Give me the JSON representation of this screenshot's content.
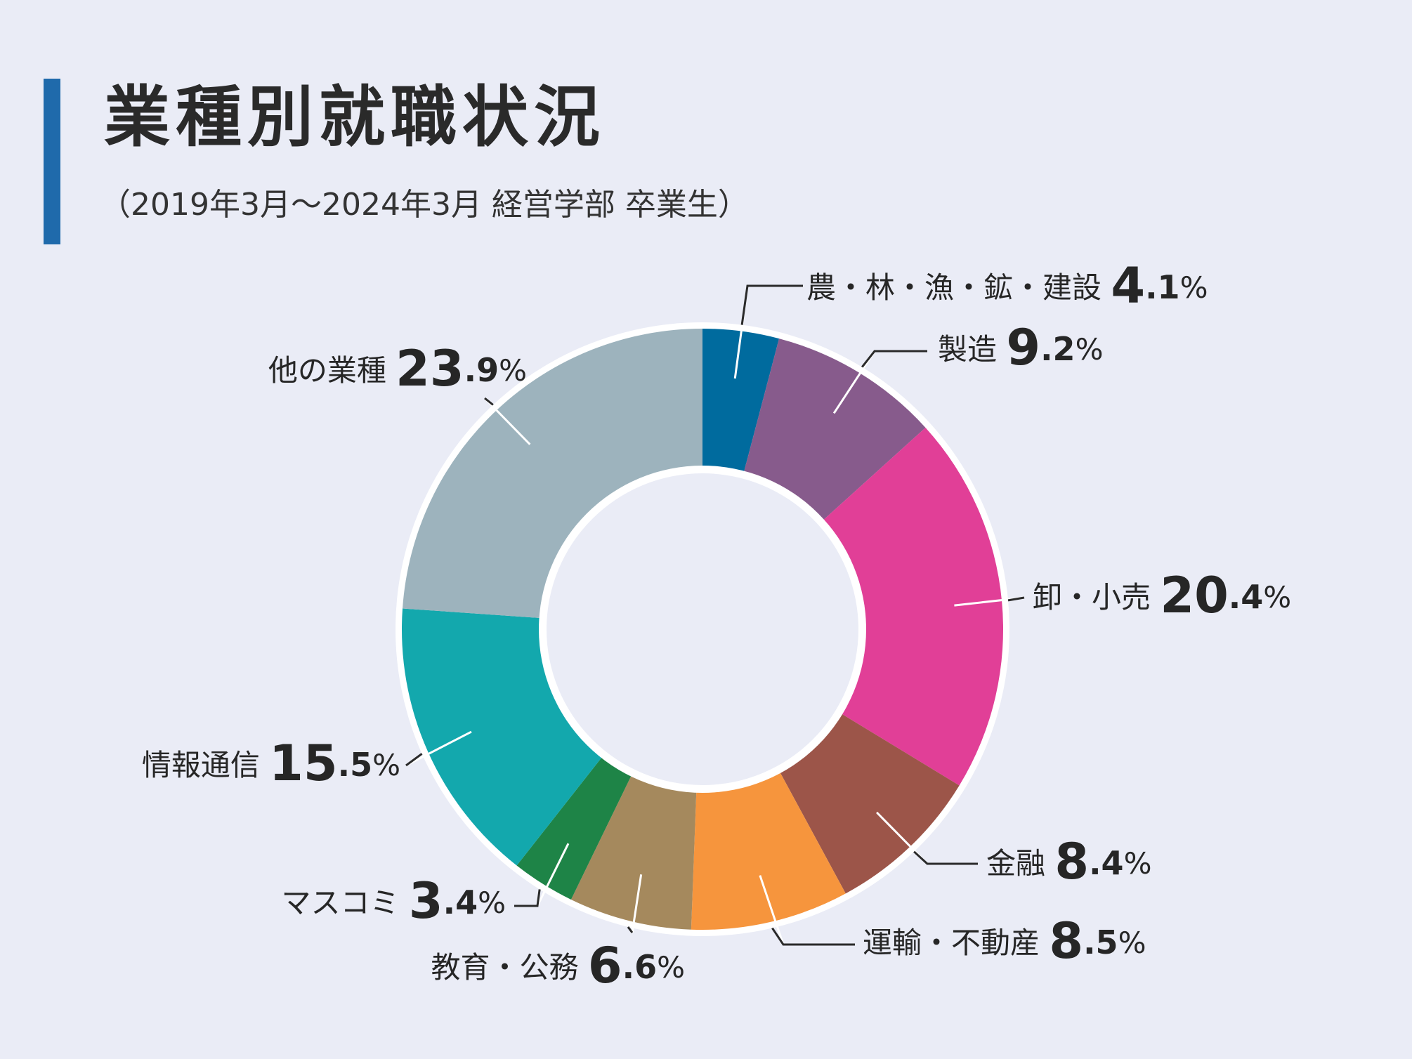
{
  "header": {
    "title": "業種別就職状況",
    "subtitle": "（2019年3月〜2024年3月 経営学部 卒業生）"
  },
  "chart_data": {
    "type": "pie",
    "style": "donut",
    "unit": "%",
    "categories": [
      "農・林・漁・鉱・建設",
      "製造",
      "卸・小売",
      "金融",
      "運輸・不動産",
      "教育・公務",
      "マスコミ",
      "情報通信",
      "他の業種"
    ],
    "values": [
      4.1,
      9.2,
      20.4,
      8.4,
      8.5,
      6.6,
      3.4,
      15.5,
      23.9
    ],
    "colors": [
      "#006b9e",
      "#875b8c",
      "#e13f97",
      "#9c5549",
      "#f6953d",
      "#a5895d",
      "#1e8447",
      "#13a8ad",
      "#9db3bd"
    ],
    "labels": [
      {
        "name": "農・林・漁・鉱・建設",
        "int": "4",
        "dec": ".1",
        "pct": "%"
      },
      {
        "name": "製造",
        "int": "9",
        "dec": ".2",
        "pct": "%"
      },
      {
        "name": "卸・小売",
        "int": "20",
        "dec": ".4",
        "pct": "%"
      },
      {
        "name": "金融",
        "int": "8",
        "dec": ".4",
        "pct": "%"
      },
      {
        "name": "運輸・不動産",
        "int": "8",
        "dec": ".5",
        "pct": "%"
      },
      {
        "name": "教育・公務",
        "int": "6",
        "dec": ".6",
        "pct": "%"
      },
      {
        "name": "マスコミ",
        "int": "3",
        "dec": ".4",
        "pct": "%"
      },
      {
        "name": "情報通信",
        "int": "15",
        "dec": ".5",
        "pct": "%"
      },
      {
        "name": "他の業種",
        "int": "23",
        "dec": ".9",
        "pct": "%"
      }
    ]
  }
}
